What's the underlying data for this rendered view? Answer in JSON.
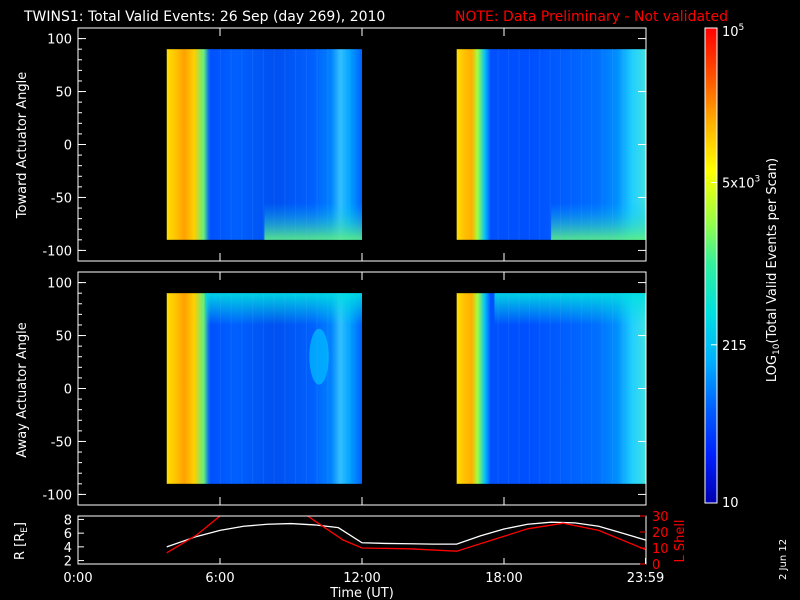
{
  "title": {
    "main": "TWINS1: Total Valid Events: 26 Sep (day 269), 2010",
    "note": "NOTE: Data Preliminary - Not validated",
    "note_color": "#ff0000"
  },
  "footer": {
    "date_stamp": "2 Jun 12"
  },
  "chart_data": [
    {
      "id": "toward",
      "type": "heatmap",
      "ylabel": "Toward Actuator Angle",
      "xlabel": "",
      "x_range_hours": [
        0,
        24
      ],
      "ylim": [
        -110,
        110
      ],
      "yticks": [
        100,
        50,
        0,
        -50,
        -100
      ],
      "data_coverage": [
        {
          "start_hour": 3.75,
          "end_hour": 12.0,
          "angle_range": [
            -90,
            90
          ]
        },
        {
          "start_hour": 16.0,
          "end_hour": 23.98,
          "angle_range": [
            -90,
            90
          ]
        }
      ]
    },
    {
      "id": "away",
      "type": "heatmap",
      "ylabel": "Away Actuator Angle",
      "xlabel": "",
      "x_range_hours": [
        0,
        24
      ],
      "ylim": [
        -110,
        110
      ],
      "yticks": [
        100,
        50,
        0,
        -50,
        -100
      ],
      "data_coverage": [
        {
          "start_hour": 3.75,
          "end_hour": 12.0,
          "angle_range": [
            -90,
            90
          ]
        },
        {
          "start_hour": 16.0,
          "end_hour": 23.98,
          "angle_range": [
            -90,
            90
          ]
        }
      ]
    },
    {
      "id": "orbit",
      "type": "line",
      "ylabel": "R [RE]",
      "ylabel_main": "R [R",
      "ylabel_sub": "E",
      "ylabel_end": "]",
      "y2label": "L Shell",
      "ylim": [
        1.5,
        8.5
      ],
      "yticks": [
        8,
        6,
        4,
        2
      ],
      "y2lim": [
        0,
        30
      ],
      "y2ticks": [
        30,
        20,
        10,
        0
      ],
      "xlabel": "Time (UT)",
      "xticks": [
        {
          "hour": 0,
          "label": "0:00"
        },
        {
          "hour": 6,
          "label": "6:00"
        },
        {
          "hour": 12,
          "label": "12:00"
        },
        {
          "hour": 18,
          "label": "18:00"
        },
        {
          "hour": 23.98,
          "label": "23:59"
        }
      ],
      "series": [
        {
          "color": "#ffffff",
          "axis": "left",
          "x": [
            3.75,
            5,
            6,
            7,
            8,
            9,
            10,
            11,
            12,
            13,
            14,
            15,
            16,
            17,
            18,
            19,
            20,
            21,
            22,
            23,
            23.98
          ],
          "y": [
            4.0,
            5.5,
            6.4,
            7.0,
            7.3,
            7.4,
            7.2,
            6.8,
            4.6,
            4.5,
            4.45,
            4.4,
            4.4,
            5.6,
            6.6,
            7.3,
            7.6,
            7.5,
            7.0,
            6.0,
            5.0
          ]
        },
        {
          "color": "#ff0000",
          "axis": "right",
          "segments": [
            {
              "x": [
                3.75,
                5.0,
                6.0
              ],
              "y": [
                7,
                18,
                30
              ]
            },
            {
              "x": [
                9.7,
                10.5,
                11.2,
                12.0,
                14.0,
                16.0,
                17.5,
                19.0,
                20.5,
                22.0,
                23.98
              ],
              "y": [
                30,
                22,
                15,
                10,
                9.5,
                8,
                15,
                22,
                25.5,
                21,
                9
              ]
            }
          ]
        }
      ]
    }
  ],
  "colorbar": {
    "label_prefix": "LOG",
    "label_sub": "10",
    "label_rest": "(Total Valid Events per Scan)",
    "label_full": "LOG10(Total Valid Events per Scan)",
    "scale": "log",
    "range": [
      10,
      100000
    ],
    "ticks": [
      {
        "value": 100000,
        "base": "10",
        "exp": "5",
        "label": "10^5"
      },
      {
        "value": 5000,
        "base": "5x10",
        "exp": "3",
        "label": "5x10^3"
      },
      {
        "value": 215,
        "base": "215",
        "exp": "",
        "label": "215"
      },
      {
        "value": 10,
        "base": "10",
        "exp": "",
        "label": "10"
      }
    ],
    "colors": [
      "#0000b0",
      "#0020ff",
      "#0060ff",
      "#00b0ff",
      "#00e0e0",
      "#30f0a0",
      "#a0ff40",
      "#ffff00",
      "#ffb000",
      "#ff5000",
      "#ff0000"
    ]
  }
}
